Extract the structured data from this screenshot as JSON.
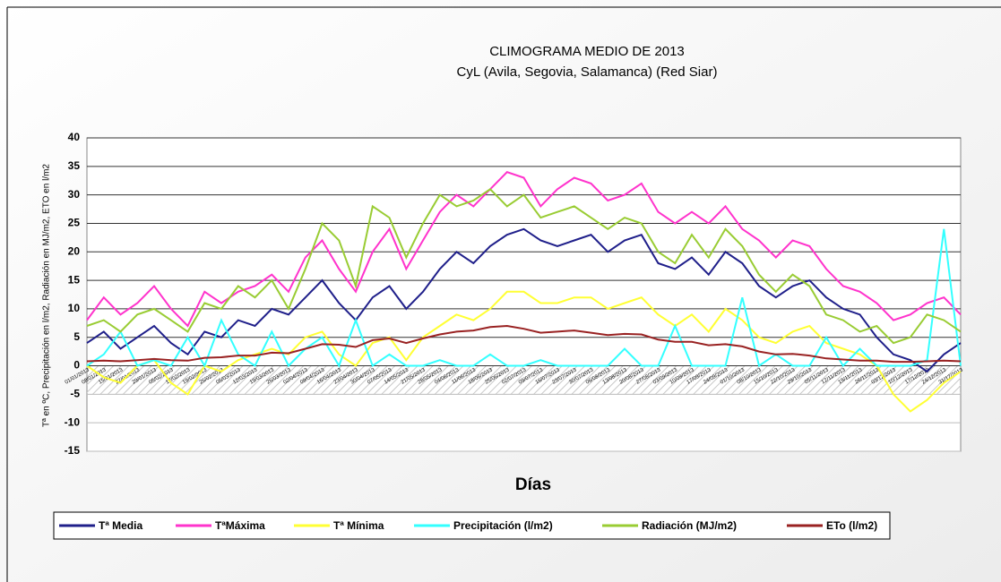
{
  "chart_data": {
    "type": "line",
    "title": "CLIMOGRAMA MEDIO DE 2013",
    "subtitle": "CyL (Avila, Segovia, Salamanca) (Red Siar)",
    "x_label": "Días",
    "y_label": "Tª en ºC, Precipitación en l/m2, Radiación en MJ/m2, ETO en l/m2",
    "categories": [
      "01/01/2013",
      "08/01/2013",
      "15/01/2013",
      "22/01/2013",
      "29/01/2013",
      "05/02/2013",
      "12/02/2013",
      "19/02/2013",
      "26/02/2013",
      "05/03/2013",
      "12/03/2013",
      "19/03/2013",
      "26/03/2013",
      "02/04/2013",
      "09/04/2013",
      "16/04/2013",
      "23/04/2013",
      "30/04/2013",
      "07/05/2013",
      "14/05/2013",
      "21/05/2013",
      "28/05/2013",
      "04/06/2013",
      "11/06/2013",
      "18/06/2013",
      "25/06/2013",
      "02/07/2013",
      "09/07/2013",
      "16/07/2013",
      "23/07/2013",
      "30/07/2013",
      "06/08/2013",
      "13/08/2013",
      "20/08/2013",
      "27/08/2013",
      "03/09/2013",
      "10/09/2013",
      "17/09/2013",
      "24/09/2013",
      "01/10/2013",
      "08/10/2013",
      "15/10/2013",
      "22/10/2013",
      "29/10/2013",
      "05/11/2013",
      "12/11/2013",
      "19/11/2013",
      "26/11/2013",
      "03/12/2013",
      "10/12/2013",
      "17/12/2013",
      "24/12/2013",
      "31/12/2013"
    ],
    "series": [
      {
        "name": "Tª Media",
        "color": "#1f1f8a",
        "values": [
          4,
          6,
          3,
          5,
          7,
          4,
          2,
          6,
          5,
          8,
          7,
          10,
          9,
          12,
          15,
          11,
          8,
          12,
          14,
          10,
          13,
          17,
          20,
          18,
          21,
          23,
          24,
          22,
          21,
          22,
          23,
          20,
          22,
          23,
          18,
          17,
          19,
          16,
          20,
          18,
          14,
          12,
          14,
          15,
          12,
          10,
          9,
          5,
          2,
          1,
          -1,
          2,
          4
        ]
      },
      {
        "name": "TªMáxima",
        "color": "#ff33cc",
        "values": [
          8,
          12,
          9,
          11,
          14,
          10,
          7,
          13,
          11,
          13,
          14,
          16,
          13,
          19,
          22,
          17,
          13,
          20,
          24,
          17,
          22,
          27,
          30,
          28,
          31,
          34,
          33,
          28,
          31,
          33,
          32,
          29,
          30,
          32,
          27,
          25,
          27,
          25,
          28,
          24,
          22,
          19,
          22,
          21,
          17,
          14,
          13,
          11,
          8,
          9,
          11,
          12,
          9
        ]
      },
      {
        "name": "Tª Mínima",
        "color": "#ffff33",
        "values": [
          0,
          -2,
          -3,
          0,
          1,
          -3,
          -5,
          0,
          -1,
          1,
          2,
          3,
          2,
          5,
          6,
          2,
          0,
          4,
          5,
          1,
          5,
          7,
          9,
          8,
          10,
          13,
          13,
          11,
          11,
          12,
          12,
          10,
          11,
          12,
          9,
          7,
          9,
          6,
          10,
          8,
          5,
          4,
          6,
          7,
          4,
          3,
          2,
          0,
          -5,
          -8,
          -6,
          -3,
          -1
        ]
      },
      {
        "name": "Precipitación (l/m2)",
        "color": "#33ffff",
        "values": [
          0,
          2,
          6,
          0,
          1,
          0,
          5,
          0,
          8,
          2,
          0,
          6,
          0,
          3,
          5,
          0,
          8,
          0,
          2,
          0,
          0,
          1,
          0,
          0,
          2,
          0,
          0,
          1,
          0,
          0,
          0,
          0,
          3,
          0,
          0,
          7,
          0,
          0,
          0,
          12,
          0,
          2,
          0,
          0,
          5,
          0,
          3,
          0,
          0,
          0,
          1,
          24,
          0
        ]
      },
      {
        "name": "Radiación (MJ/m2)",
        "color": "#99cc33",
        "values": [
          7,
          8,
          6,
          9,
          10,
          8,
          6,
          11,
          10,
          14,
          12,
          15,
          10,
          17,
          25,
          22,
          14,
          28,
          26,
          19,
          25,
          30,
          28,
          29,
          31,
          28,
          30,
          26,
          27,
          28,
          26,
          24,
          26,
          25,
          20,
          18,
          23,
          19,
          24,
          21,
          16,
          13,
          16,
          14,
          9,
          8,
          6,
          7,
          4,
          5,
          9,
          8,
          6
        ]
      },
      {
        "name": "ETo (l/m2)",
        "color": "#992222",
        "values": [
          0.8,
          0.9,
          0.8,
          1.0,
          1.2,
          1.0,
          0.9,
          1.4,
          1.5,
          1.8,
          1.8,
          2.3,
          2.2,
          3.0,
          3.8,
          3.7,
          3.3,
          4.5,
          4.8,
          4.0,
          4.8,
          5.5,
          6.0,
          6.2,
          6.8,
          7.0,
          6.5,
          5.8,
          6.0,
          6.2,
          5.8,
          5.4,
          5.6,
          5.5,
          4.6,
          4.2,
          4.2,
          3.6,
          3.8,
          3.4,
          2.5,
          2.0,
          2.1,
          1.8,
          1.3,
          1.1,
          0.9,
          0.9,
          0.7,
          0.7,
          0.8,
          0.9,
          0.8
        ]
      }
    ],
    "ylim": [
      -15,
      40
    ],
    "yticks": [
      -15,
      -10,
      -5,
      0,
      5,
      10,
      15,
      20,
      25,
      30,
      35,
      40
    ],
    "grid": true,
    "legend": "bottom"
  }
}
